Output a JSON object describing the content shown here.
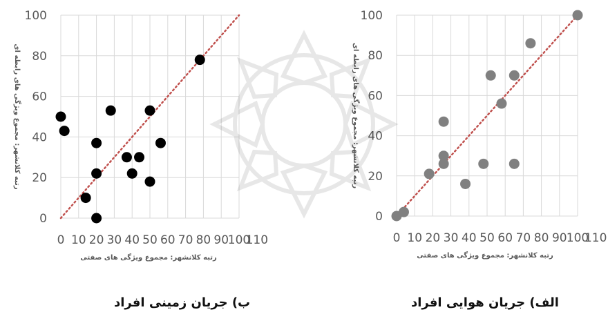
{
  "chart_data": [
    {
      "type": "scatter",
      "panel": "left",
      "title": "ب) جریان زمینی افراد",
      "xlabel": "رتبه کلانشهر: مجموع ویژگی های صفتی",
      "ylabel": "رتبه کلانشهر: مجموع ویژگی های رابطه ای",
      "xlim": [
        0,
        100
      ],
      "ylim": [
        0,
        100
      ],
      "x_ticks": [
        "0",
        "10",
        "20",
        "30",
        "40",
        "50",
        "60",
        "70",
        "80",
        "90",
        "100",
        "110"
      ],
      "y_ticks": [
        "0",
        "20",
        "40",
        "60",
        "80",
        "100"
      ],
      "marker_color": "#000000",
      "reference_line": {
        "from": [
          0,
          0
        ],
        "to": [
          100,
          100
        ],
        "color": "#c0504d",
        "style": "dotted"
      },
      "grid": true,
      "points": [
        {
          "x": 0,
          "y": 50
        },
        {
          "x": 2,
          "y": 43
        },
        {
          "x": 14,
          "y": 10
        },
        {
          "x": 20,
          "y": 37
        },
        {
          "x": 20,
          "y": 22
        },
        {
          "x": 20,
          "y": 0
        },
        {
          "x": 28,
          "y": 53
        },
        {
          "x": 37,
          "y": 30
        },
        {
          "x": 40,
          "y": 22
        },
        {
          "x": 44,
          "y": 30
        },
        {
          "x": 50,
          "y": 53
        },
        {
          "x": 50,
          "y": 18
        },
        {
          "x": 56,
          "y": 37
        },
        {
          "x": 78,
          "y": 78
        }
      ]
    },
    {
      "type": "scatter",
      "panel": "right",
      "title": "الف) جریان هوایی افراد",
      "xlabel": "رتبه کلانشهر: مجموع ویژگی های صفتی",
      "ylabel": "رتبه کلانشهر: مجموع ویژگی های رابطه ای",
      "xlim": [
        0,
        100
      ],
      "ylim": [
        0,
        100
      ],
      "x_ticks": [
        "0",
        "10",
        "20",
        "30",
        "40",
        "50",
        "60",
        "70",
        "80",
        "90",
        "100",
        "110"
      ],
      "y_ticks": [
        "0",
        "20",
        "40",
        "60",
        "80",
        "100"
      ],
      "marker_color": "#808080",
      "reference_line": {
        "from": [
          0,
          0
        ],
        "to": [
          100,
          100
        ],
        "color": "#c0504d",
        "style": "dotted"
      },
      "grid": true,
      "points": [
        {
          "x": 0,
          "y": 0
        },
        {
          "x": 4,
          "y": 2
        },
        {
          "x": 18,
          "y": 21
        },
        {
          "x": 26,
          "y": 47
        },
        {
          "x": 26,
          "y": 30
        },
        {
          "x": 26,
          "y": 26
        },
        {
          "x": 38,
          "y": 16
        },
        {
          "x": 48,
          "y": 26
        },
        {
          "x": 52,
          "y": 70
        },
        {
          "x": 58,
          "y": 56
        },
        {
          "x": 65,
          "y": 70
        },
        {
          "x": 65,
          "y": 26
        },
        {
          "x": 74,
          "y": 86
        },
        {
          "x": 100,
          "y": 100
        }
      ]
    }
  ]
}
